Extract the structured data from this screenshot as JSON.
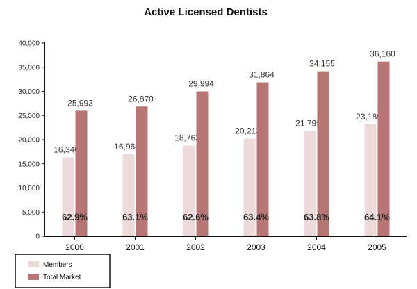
{
  "chart_data": {
    "type": "bar",
    "title": "Active Licensed Dentists",
    "xlabel": "",
    "ylabel": "",
    "categories": [
      "2000",
      "2001",
      "2002",
      "2003",
      "2004",
      "2005"
    ],
    "series": [
      {
        "name": "Members",
        "color": "#ecd9d9",
        "values": [
          16340,
          16964,
          18763,
          20213,
          21799,
          23189
        ],
        "value_labels": [
          "16,340",
          "16,964",
          "18,763",
          "20,213",
          "21,799",
          "23,189"
        ]
      },
      {
        "name": "Total Market",
        "color": "#b77574",
        "values": [
          25993,
          26870,
          29994,
          31864,
          34155,
          36160
        ],
        "value_labels": [
          "25,993",
          "26,870",
          "29,994",
          "31,864",
          "34,155",
          "36,160"
        ]
      }
    ],
    "annotations": [
      "62.9%",
      "63.1%",
      "62.6%",
      "63.4%",
      "63.8%",
      "64.1%"
    ],
    "ylim": [
      0,
      40000
    ],
    "yticks": [
      0,
      5000,
      10000,
      15000,
      20000,
      25000,
      30000,
      35000,
      40000
    ],
    "ytick_labels": [
      "0",
      "5,000",
      "10,000",
      "15,000",
      "20,000",
      "25,000",
      "30,000",
      "35,000",
      "40,000"
    ],
    "grid": false,
    "legend_position": "bottom-left"
  }
}
